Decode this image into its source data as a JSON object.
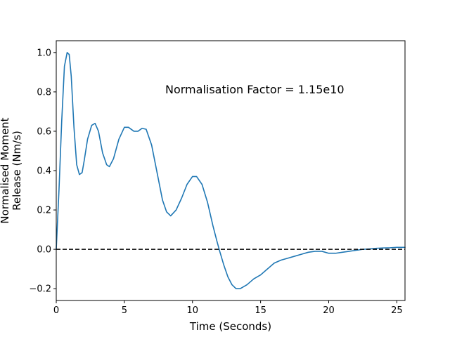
{
  "chart_data": {
    "type": "line",
    "title": "",
    "xlabel": "Time (Seconds)",
    "ylabel_lines": [
      "Normalised Moment",
      "Release (Nm/s)"
    ],
    "xlim": [
      0,
      25.6
    ],
    "ylim": [
      -0.26,
      1.06
    ],
    "xticks": [
      0,
      5,
      10,
      15,
      20,
      25
    ],
    "xtick_labels": [
      "0",
      "5",
      "10",
      "15",
      "20",
      "25"
    ],
    "yticks": [
      -0.2,
      0.0,
      0.2,
      0.4,
      0.6,
      0.8,
      1.0
    ],
    "ytick_labels": [
      "−0.2",
      "0.0",
      "0.2",
      "0.4",
      "0.6",
      "0.8",
      "1.0"
    ],
    "grid": false,
    "annotation": {
      "text": "Normalisation Factor = 1.15e10",
      "x": 8.0,
      "y": 0.81
    },
    "reference_line": {
      "y": 0.0,
      "style": "dashed",
      "color": "#000000"
    },
    "series": [
      {
        "color": "#1f77b4",
        "x": [
          0,
          0.2,
          0.4,
          0.6,
          0.8,
          0.95,
          1.1,
          1.3,
          1.5,
          1.7,
          1.9,
          2.05,
          2.3,
          2.6,
          2.85,
          3.1,
          3.4,
          3.7,
          3.9,
          4.2,
          4.6,
          5.0,
          5.3,
          5.7,
          6.0,
          6.3,
          6.6,
          7.0,
          7.4,
          7.8,
          8.1,
          8.4,
          8.8,
          9.2,
          9.6,
          10.0,
          10.3,
          10.7,
          11.1,
          11.5,
          11.8,
          12.0,
          12.3,
          12.6,
          12.9,
          13.2,
          13.5,
          14.0,
          14.5,
          15.0,
          15.5,
          16.0,
          16.5,
          17.0,
          17.5,
          18.0,
          18.5,
          19.0,
          19.5,
          20.0,
          20.5,
          21.0,
          21.5,
          22.0,
          22.5,
          23.0,
          23.5,
          24.0,
          24.5,
          25.0,
          25.6
        ],
        "y": [
          0.0,
          0.3,
          0.65,
          0.93,
          1.0,
          0.99,
          0.88,
          0.62,
          0.43,
          0.38,
          0.39,
          0.45,
          0.56,
          0.63,
          0.64,
          0.6,
          0.49,
          0.43,
          0.42,
          0.46,
          0.56,
          0.62,
          0.62,
          0.6,
          0.6,
          0.615,
          0.61,
          0.53,
          0.39,
          0.25,
          0.19,
          0.17,
          0.2,
          0.26,
          0.33,
          0.37,
          0.37,
          0.33,
          0.24,
          0.12,
          0.04,
          -0.01,
          -0.08,
          -0.14,
          -0.18,
          -0.2,
          -0.2,
          -0.18,
          -0.15,
          -0.13,
          -0.1,
          -0.07,
          -0.055,
          -0.045,
          -0.035,
          -0.025,
          -0.015,
          -0.01,
          -0.01,
          -0.02,
          -0.02,
          -0.015,
          -0.01,
          -0.005,
          0.0,
          0.002,
          0.005,
          0.007,
          0.008,
          0.01,
          0.01
        ]
      }
    ]
  }
}
